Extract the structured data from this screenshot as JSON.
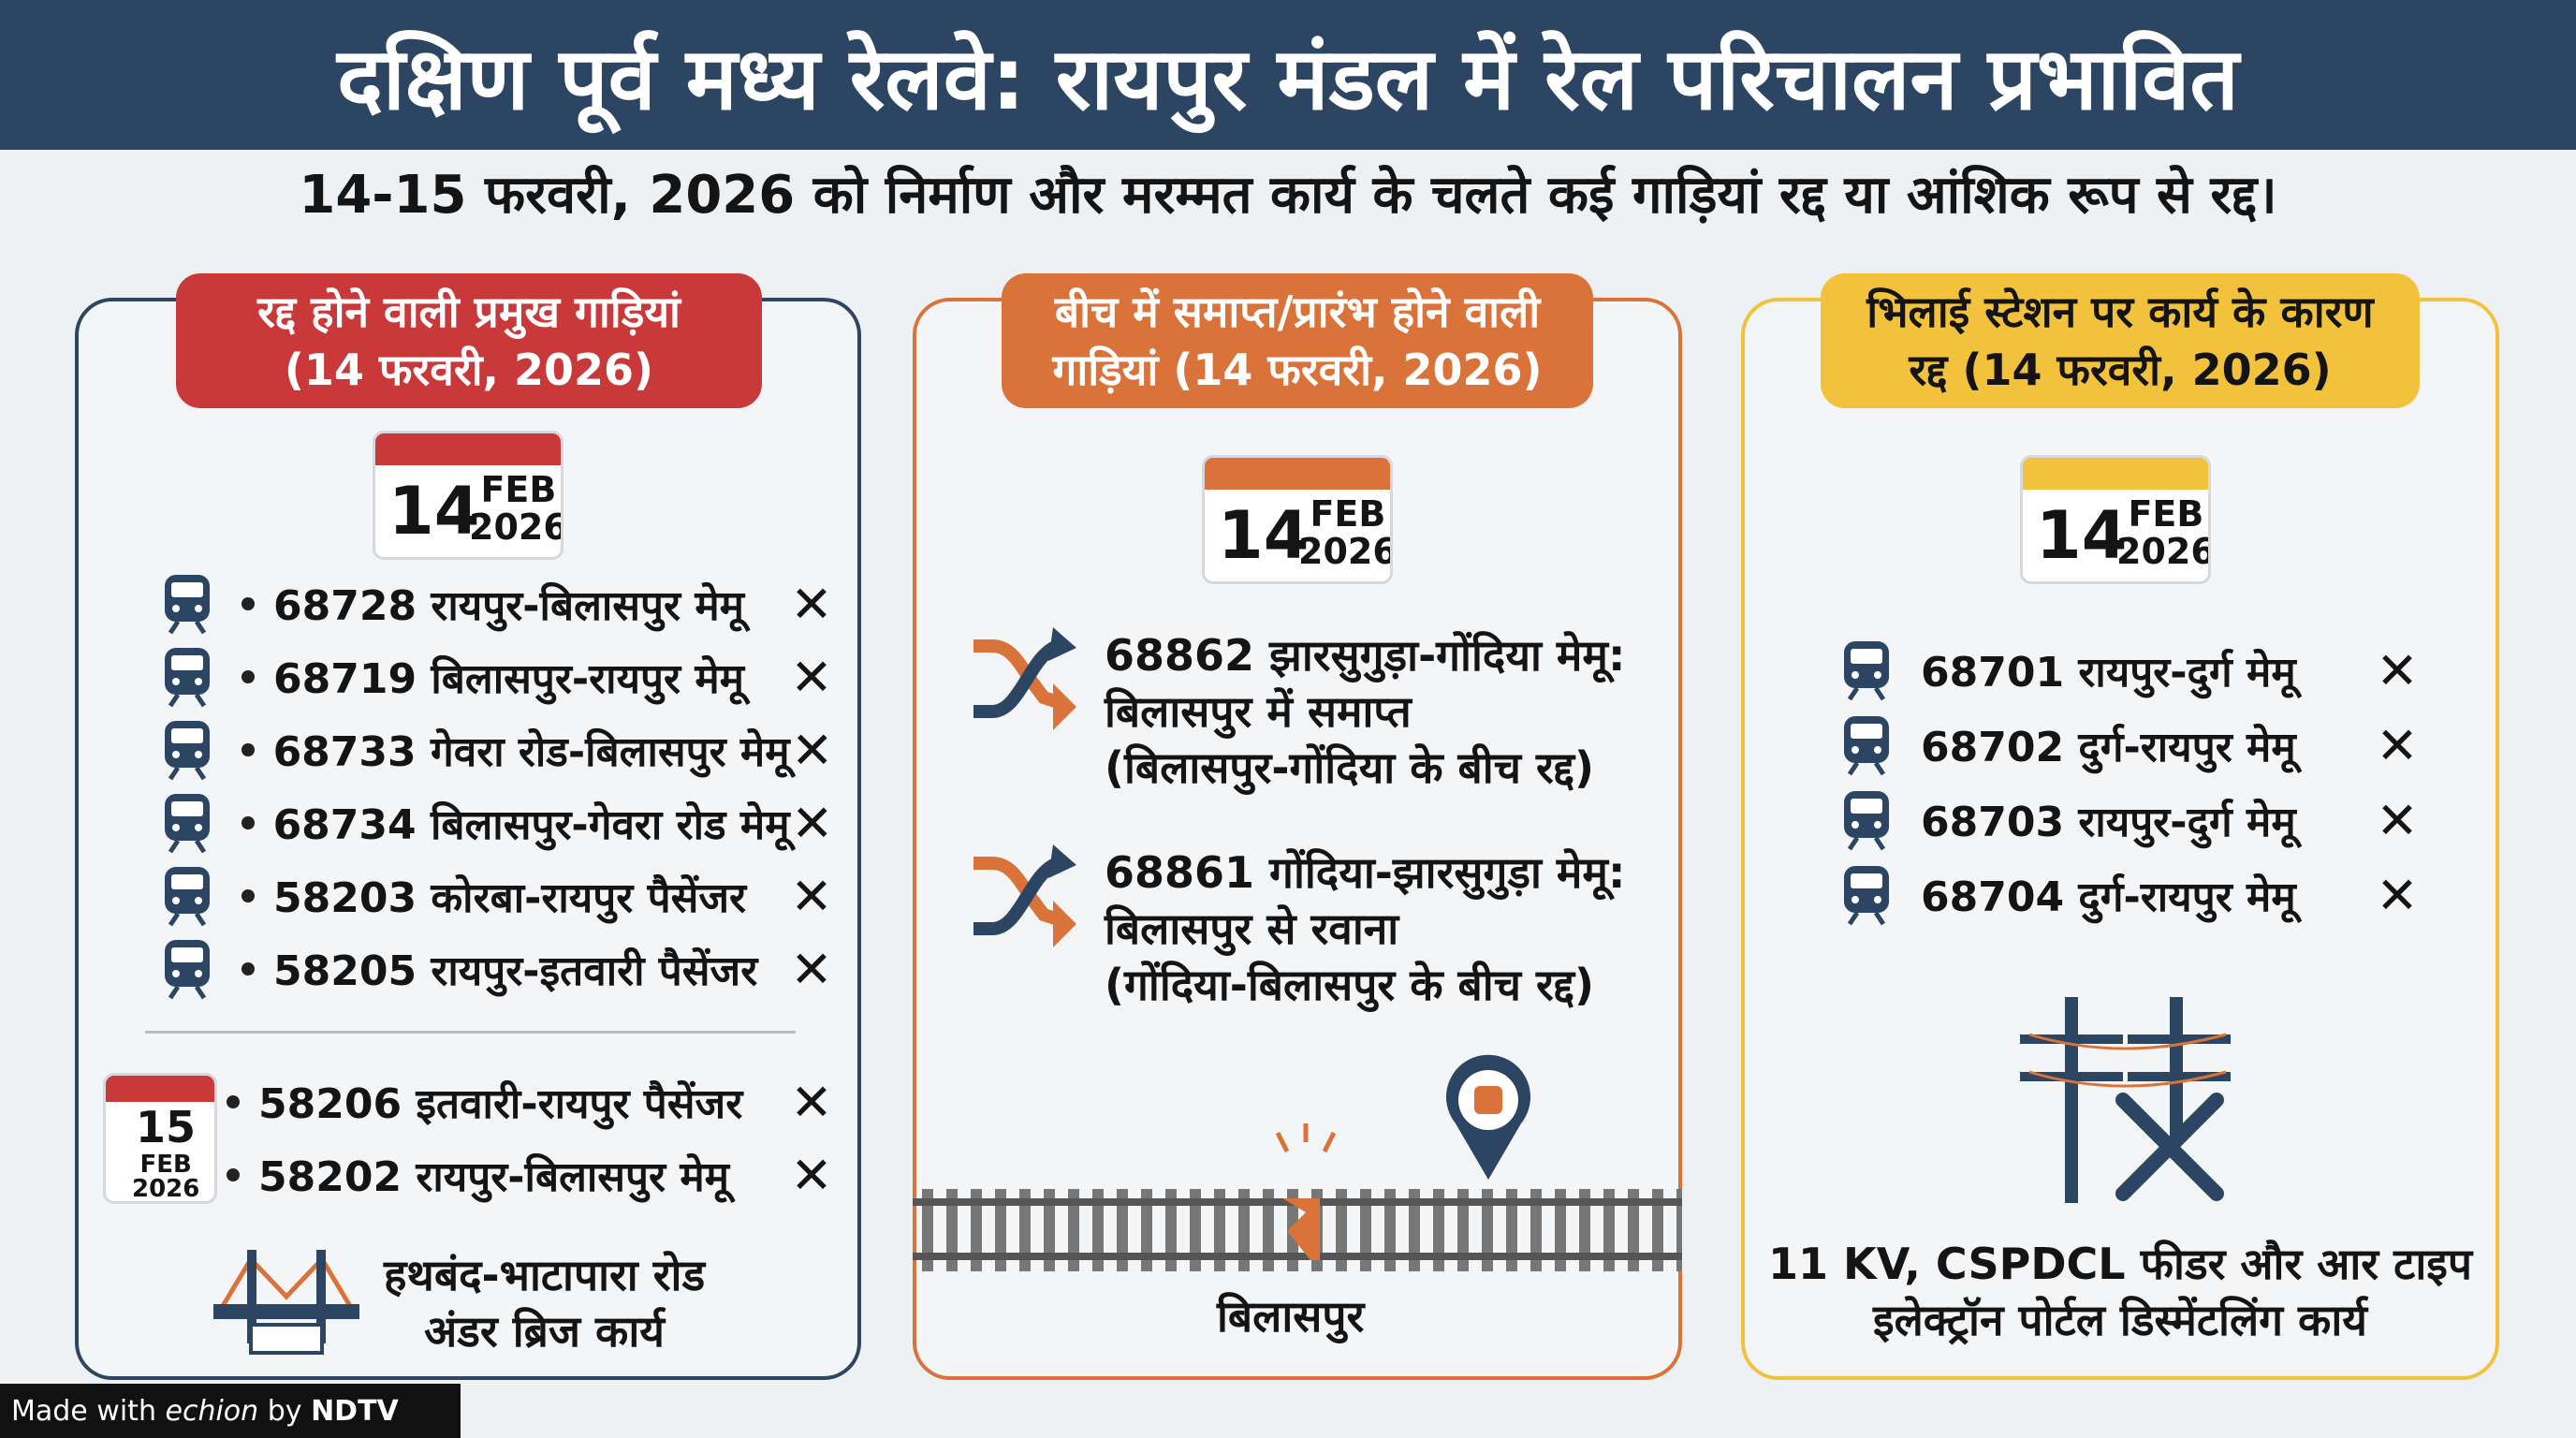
{
  "title": "दक्षिण पूर्व मध्य रेलवे: रायपुर मंडल में रेल परिचालन प्रभावित",
  "subtitle": "14-15 फरवरी, 2026 को निर्माण और मरम्मत कार्य के चलते कई गाड़ियां रद्द या आंशिक रूप से रद्द।",
  "colors": {
    "header": "#2c4562",
    "red": "#c9393a",
    "orange": "#d9733a",
    "yellow": "#f2c23c",
    "navy": "#2c4562"
  },
  "left": {
    "heading_1": "रद्द होने वाली प्रमुख गाड़ियां",
    "heading_2": "(14 फरवरी, 2026)",
    "cal": {
      "day": "14",
      "month": "FEB",
      "year": "2026"
    },
    "trains": [
      "68728 रायपुर-बिलासपुर मेमू",
      "68719 बिलासपुर-रायपुर मेमू",
      "68733 गेवरा रोड-बिलासपुर मेमू",
      "68734 बिलासपुर-गेवरा रोड मेमू",
      "58203 कोरबा-रायपुर पैसेंजर",
      "58205 रायपुर-इतवारी पैसेंजर"
    ],
    "cal2": {
      "day": "15",
      "month": "FEB",
      "year": "2026"
    },
    "trains2": [
      "58206 इतवारी-रायपुर पैसेंजर",
      "58202 रायपुर-बिलासपुर मेमू"
    ],
    "cancel_mark": "✕",
    "bridge_1": "हथबंद-भाटापारा रोड",
    "bridge_2": "अंडर ब्रिज कार्य"
  },
  "middle": {
    "heading_1": "बीच में समाप्त/प्रारंभ होने वाली",
    "heading_2": "गाड़ियां (14 फरवरी, 2026)",
    "cal": {
      "day": "14",
      "month": "FEB",
      "year": "2026"
    },
    "items": [
      {
        "l1": "68862 झारसुगुड़ा-गोंदिया मेमू:",
        "l2": "बिलासपुर में समाप्त",
        "l3": "(बिलासपुर-गोंदिया के बीच रद्द)"
      },
      {
        "l1": "68861 गोंदिया-झारसुगुड़ा मेमू:",
        "l2": "बिलासपुर से रवाना",
        "l3": "(गोंदिया-बिलासपुर के बीच रद्द)"
      }
    ],
    "station": "बिलासपुर"
  },
  "right": {
    "heading_1": "भिलाई स्टेशन पर कार्य के कारण",
    "heading_2": "रद्द (14 फरवरी, 2026)",
    "cal": {
      "day": "14",
      "month": "FEB",
      "year": "2026"
    },
    "trains": [
      "68701 रायपुर-दुर्ग मेमू",
      "68702 दुर्ग-रायपुर मेमू",
      "68703 रायपुर-दुर्ग मेमू",
      "68704 दुर्ग-रायपुर मेमू"
    ],
    "work_1": "11 KV, CSPDCL फीडर और आर टाइप",
    "work_2": "इलेक्ट्रॉन पोर्टल डिस्मेंटलिंग कार्य"
  },
  "footer": {
    "made_with": "Made with",
    "brand": "echion",
    "by": "by",
    "partner": "NDTV"
  }
}
